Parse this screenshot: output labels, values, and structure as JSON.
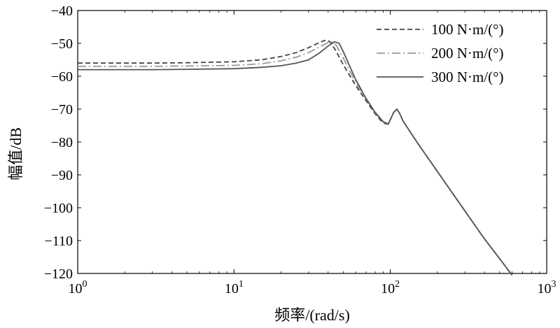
{
  "chart_data": {
    "type": "line",
    "title": "",
    "xlabel": "频率/(rad/s)",
    "ylabel": "幅值/dB",
    "xscale": "log",
    "xlim": [
      1,
      1000
    ],
    "ylim": [
      -120,
      -40
    ],
    "grid": false,
    "legend_position": "top-right",
    "x_ticks": [
      {
        "value": 1,
        "base": "10",
        "exp": "0"
      },
      {
        "value": 10,
        "base": "10",
        "exp": "1"
      },
      {
        "value": 100,
        "base": "10",
        "exp": "2"
      },
      {
        "value": 1000,
        "base": "10",
        "exp": "3"
      }
    ],
    "y_ticks": [
      {
        "value": -40,
        "label": "−40"
      },
      {
        "value": -50,
        "label": "−50"
      },
      {
        "value": -60,
        "label": "−60"
      },
      {
        "value": -70,
        "label": "−70"
      },
      {
        "value": -80,
        "label": "−80"
      },
      {
        "value": -90,
        "label": "−90"
      },
      {
        "value": -100,
        "label": "−100"
      },
      {
        "value": -110,
        "label": "−110"
      },
      {
        "value": -120,
        "label": "−120"
      }
    ],
    "series": [
      {
        "name": "100 N·m/(°)",
        "color": "#444444",
        "dash": "dashed",
        "x": [
          1,
          3,
          5,
          10,
          15,
          20,
          25,
          30,
          35,
          38,
          40,
          42,
          45,
          50,
          55,
          60,
          70,
          80,
          90,
          97,
          100,
          105,
          110,
          115,
          120,
          150,
          200,
          300,
          400,
          500,
          600
        ],
        "y": [
          -56,
          -56,
          -55.9,
          -55.6,
          -55,
          -54,
          -52.8,
          -51.3,
          -49.8,
          -49.1,
          -49.1,
          -50,
          -52.4,
          -56.5,
          -59.8,
          -62.8,
          -67.5,
          -71.5,
          -74.3,
          -74.6,
          -73.2,
          -71,
          -70,
          -71.4,
          -73.5,
          -80.5,
          -89,
          -101,
          -109.5,
          -115.5,
          -120.5
        ]
      },
      {
        "name": "200 N·m/(°)",
        "color": "#999999",
        "dash": "dashdot",
        "x": [
          1,
          3,
          5,
          10,
          15,
          20,
          25,
          30,
          35,
          40,
          42,
          45,
          50,
          55,
          60,
          70,
          80,
          90,
          97,
          100,
          105,
          110,
          115,
          120,
          150,
          200,
          300,
          400,
          500,
          600
        ],
        "y": [
          -57,
          -57,
          -56.9,
          -56.7,
          -56.2,
          -55.3,
          -54.2,
          -52.8,
          -51.2,
          -49.7,
          -49.5,
          -50.5,
          -54.5,
          -58.4,
          -61.8,
          -67,
          -71.2,
          -74,
          -74.5,
          -73.2,
          -71,
          -70,
          -71.4,
          -73.5,
          -80.5,
          -89,
          -101,
          -109.5,
          -115.5,
          -120.5
        ]
      },
      {
        "name": "300 N·m/(°)",
        "color": "#555555",
        "dash": "solid",
        "x": [
          1,
          3,
          5,
          10,
          15,
          20,
          25,
          30,
          35,
          40,
          44,
          47,
          50,
          55,
          60,
          70,
          80,
          90,
          97,
          100,
          105,
          110,
          115,
          120,
          150,
          200,
          300,
          400,
          500,
          600
        ],
        "y": [
          -58,
          -58,
          -57.9,
          -57.7,
          -57.3,
          -56.8,
          -56,
          -55,
          -53,
          -50.8,
          -49.5,
          -50,
          -52.5,
          -57,
          -61,
          -66.8,
          -71,
          -73.8,
          -74.5,
          -73.2,
          -71,
          -70,
          -71.4,
          -73.5,
          -80.5,
          -89,
          -101,
          -109.5,
          -115.5,
          -120.5
        ]
      }
    ]
  }
}
